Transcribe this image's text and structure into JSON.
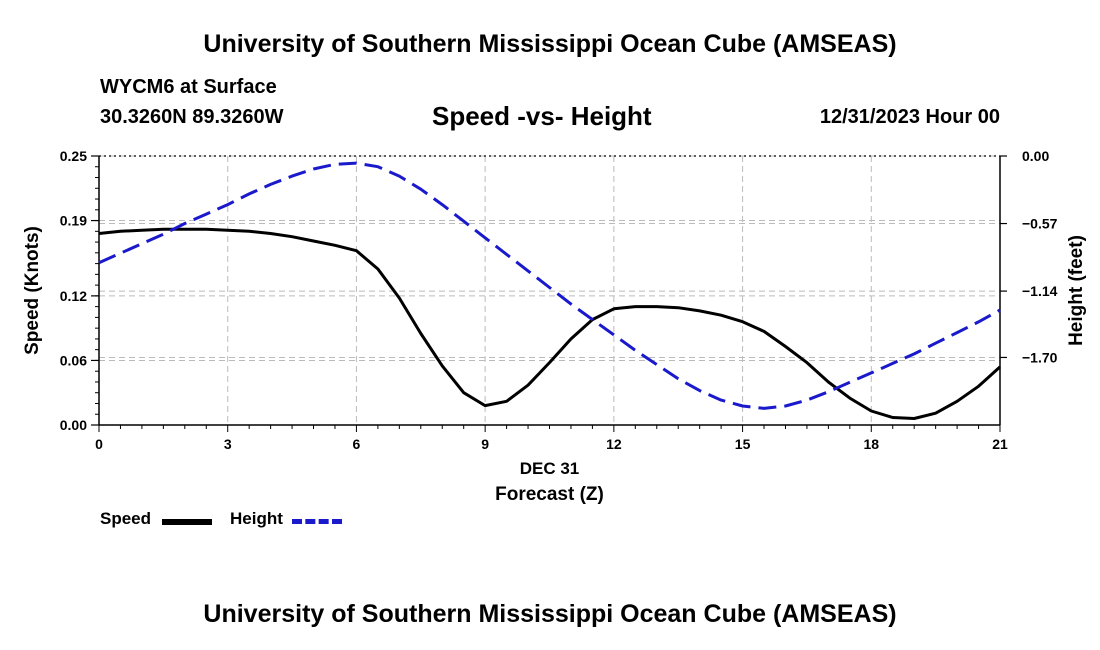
{
  "header": {
    "title_top": "University of Southern Mississippi Ocean Cube (AMSEAS)",
    "station": "WYCM6 at Surface",
    "coords": "30.3260N  89.3260W",
    "chart_title": "Speed -vs- Height",
    "datetime": "12/31/2023 Hour 00"
  },
  "footer": {
    "title_bottom": "University of Southern Mississippi Ocean Cube (AMSEAS)"
  },
  "legend": {
    "speed_label": "Speed",
    "height_label": "Height"
  },
  "colors": {
    "speed": "#000000",
    "height": "#1a1acc",
    "grid": "#bbbbbb"
  },
  "chart_data": {
    "type": "line",
    "title": "Speed -vs- Height",
    "xlabel": "Forecast (Z)",
    "xlabel_date": "DEC 31",
    "ylabel_left": "Speed (Knots)",
    "ylabel_right": "Height (feet)",
    "xlim": [
      0,
      21
    ],
    "x_ticks": [
      0,
      3,
      6,
      9,
      12,
      15,
      18,
      21
    ],
    "x_tick_labels": [
      "0",
      "3",
      "6",
      "9",
      "12",
      "15",
      "18",
      "21"
    ],
    "ylim_left": [
      0,
      0.25
    ],
    "y_left_ticks": [
      0.0,
      0.06,
      0.12,
      0.19,
      0.25
    ],
    "y_left_tick_labels": [
      "0.00",
      "0.06",
      "0.12",
      "0.19",
      "0.25"
    ],
    "ylim_right": [
      -2.27,
      0.0
    ],
    "y_right_ticks": [
      0.0,
      -0.57,
      -1.14,
      -1.7
    ],
    "y_right_tick_labels": [
      "0.00",
      "−0.57",
      "−1.14",
      "−1.70"
    ],
    "grid": true,
    "series": [
      {
        "name": "Speed",
        "axis": "left",
        "style": "solid",
        "x": [
          0,
          0.5,
          1,
          1.5,
          2,
          2.5,
          3,
          3.5,
          4,
          4.5,
          5,
          5.5,
          6,
          6.5,
          7,
          7.5,
          8,
          8.5,
          9,
          9.5,
          10,
          10.5,
          11,
          11.5,
          12,
          12.5,
          13,
          13.5,
          14,
          14.5,
          15,
          15.5,
          16,
          16.5,
          17,
          17.5,
          18,
          18.5,
          19,
          19.5,
          20,
          20.5,
          21
        ],
        "values": [
          0.178,
          0.18,
          0.181,
          0.182,
          0.182,
          0.182,
          0.181,
          0.18,
          0.178,
          0.175,
          0.171,
          0.167,
          0.162,
          0.145,
          0.118,
          0.085,
          0.055,
          0.03,
          0.018,
          0.022,
          0.037,
          0.058,
          0.08,
          0.098,
          0.108,
          0.11,
          0.11,
          0.109,
          0.106,
          0.102,
          0.096,
          0.087,
          0.073,
          0.058,
          0.04,
          0.025,
          0.013,
          0.007,
          0.006,
          0.011,
          0.022,
          0.036,
          0.054
        ]
      },
      {
        "name": "Height",
        "axis": "right",
        "style": "dashed",
        "x": [
          0,
          0.5,
          1,
          1.5,
          2,
          2.5,
          3,
          3.5,
          4,
          4.5,
          5,
          5.5,
          6,
          6.5,
          7,
          7.5,
          8,
          8.5,
          9,
          9.5,
          10,
          10.5,
          11,
          11.5,
          12,
          12.5,
          13,
          13.5,
          14,
          14.5,
          15,
          15.5,
          16,
          16.5,
          17,
          17.5,
          18,
          18.5,
          19,
          19.5,
          20,
          20.5,
          21
        ],
        "values": [
          -0.9,
          -0.82,
          -0.74,
          -0.66,
          -0.57,
          -0.49,
          -0.41,
          -0.32,
          -0.24,
          -0.17,
          -0.11,
          -0.07,
          -0.06,
          -0.09,
          -0.17,
          -0.28,
          -0.41,
          -0.55,
          -0.69,
          -0.83,
          -0.97,
          -1.11,
          -1.25,
          -1.38,
          -1.51,
          -1.64,
          -1.76,
          -1.88,
          -1.98,
          -2.06,
          -2.11,
          -2.13,
          -2.11,
          -2.06,
          -1.99,
          -1.91,
          -1.83,
          -1.75,
          -1.67,
          -1.58,
          -1.49,
          -1.4,
          -1.3
        ]
      }
    ]
  }
}
